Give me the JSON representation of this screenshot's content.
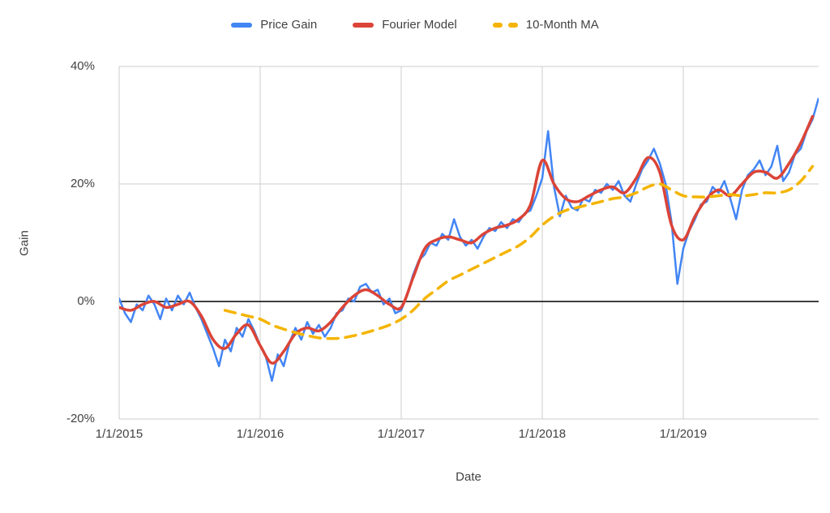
{
  "chart_data": {
    "type": "line",
    "title": "",
    "xlabel": "Date",
    "ylabel": "Gain",
    "ylim": [
      -20,
      40
    ],
    "grid_on": true,
    "legend_position": "top",
    "grid_color": "#cccccc",
    "zero_line_color": "#000000",
    "x_ticks": [
      {
        "label": "1/1/2015",
        "year": 2015
      },
      {
        "label": "1/1/2016",
        "year": 2016
      },
      {
        "label": "1/1/2017",
        "year": 2017
      },
      {
        "label": "1/1/2018",
        "year": 2018
      },
      {
        "label": "1/1/2019",
        "year": 2019
      }
    ],
    "y_ticks": [
      {
        "label": "40%",
        "value": 40
      },
      {
        "label": "20%",
        "value": 20
      },
      {
        "label": "0%",
        "value": 0
      },
      {
        "label": "-20%",
        "value": -20
      }
    ],
    "series": [
      {
        "name": "Price Gain",
        "color": "#4285F4",
        "stroke_width": 2.5,
        "dash": null,
        "smooth": false,
        "start": 2015.0,
        "points_per_year": 24,
        "values": [
          0.5,
          -2.0,
          -3.5,
          -0.5,
          -1.5,
          1.0,
          -0.5,
          -3.0,
          0.5,
          -1.5,
          1.0,
          -0.5,
          1.5,
          -1.0,
          -3.0,
          -5.5,
          -8.0,
          -11.0,
          -6.5,
          -8.5,
          -4.5,
          -6.0,
          -3.0,
          -5.0,
          -7.5,
          -9.5,
          -13.5,
          -9.0,
          -11.0,
          -7.0,
          -4.5,
          -6.5,
          -3.5,
          -5.5,
          -4.0,
          -6.0,
          -4.5,
          -2.0,
          -1.5,
          0.5,
          0.0,
          2.5,
          3.0,
          1.5,
          2.0,
          -0.5,
          0.5,
          -2.0,
          -1.5,
          1.0,
          4.5,
          7.0,
          8.0,
          10.0,
          9.5,
          11.5,
          10.5,
          14.0,
          11.0,
          9.5,
          10.5,
          9.0,
          11.0,
          12.5,
          12.0,
          13.5,
          12.5,
          14.0,
          13.5,
          15.0,
          15.5,
          18.0,
          21.0,
          29.0,
          19.5,
          14.5,
          18.0,
          16.0,
          15.5,
          17.5,
          17.0,
          19.0,
          18.5,
          20.0,
          19.0,
          20.5,
          18.0,
          17.0,
          20.0,
          22.5,
          24.0,
          26.0,
          23.5,
          20.0,
          13.5,
          3.0,
          9.0,
          12.0,
          14.0,
          16.5,
          17.0,
          19.5,
          18.5,
          20.5,
          17.5,
          14.0,
          19.0,
          21.5,
          22.5,
          24.0,
          21.5,
          23.0,
          26.5,
          20.5,
          22.0,
          25.0,
          26.0,
          29.0,
          31.0,
          34.5
        ]
      },
      {
        "name": "Fourier Model",
        "color": "#DB4437",
        "stroke_width": 3.5,
        "dash": null,
        "smooth": true,
        "start": 2015.0,
        "points_per_year": 12,
        "values": [
          -1.0,
          -1.5,
          -0.5,
          0.0,
          -1.0,
          -0.5,
          0.0,
          -2.5,
          -6.5,
          -8.0,
          -5.5,
          -4.0,
          -7.5,
          -10.5,
          -8.5,
          -5.5,
          -4.5,
          -5.0,
          -3.5,
          -1.0,
          1.0,
          2.0,
          1.0,
          -0.5,
          -1.0,
          4.0,
          9.0,
          10.5,
          11.0,
          10.5,
          10.0,
          11.5,
          12.5,
          13.0,
          14.0,
          16.5,
          24.0,
          20.0,
          17.5,
          17.0,
          18.0,
          19.0,
          19.5,
          18.5,
          21.0,
          24.5,
          22.0,
          13.0,
          10.5,
          14.5,
          17.5,
          19.0,
          18.0,
          20.0,
          22.0,
          22.0,
          21.0,
          23.5,
          27.0,
          31.5
        ]
      },
      {
        "name": "10-Month MA",
        "color": "#F4B400",
        "stroke_width": 3.5,
        "dash": "13,9",
        "smooth": true,
        "start": 2015.75,
        "points_per_year": 12,
        "values": [
          -1.5,
          -2.0,
          -2.5,
          -3.0,
          -4.0,
          -4.7,
          -5.3,
          -5.8,
          -6.2,
          -6.3,
          -6.2,
          -5.8,
          -5.3,
          -4.7,
          -4.0,
          -3.0,
          -1.5,
          0.5,
          2.0,
          3.5,
          4.5,
          5.5,
          6.5,
          7.5,
          8.5,
          9.5,
          11.0,
          13.0,
          14.5,
          15.5,
          16.0,
          16.5,
          17.0,
          17.5,
          17.8,
          18.5,
          19.5,
          20.0,
          19.0,
          18.0,
          17.8,
          17.8,
          18.0,
          18.2,
          18.0,
          18.2,
          18.5,
          18.5,
          19.0,
          20.5,
          23.0
        ]
      }
    ]
  }
}
